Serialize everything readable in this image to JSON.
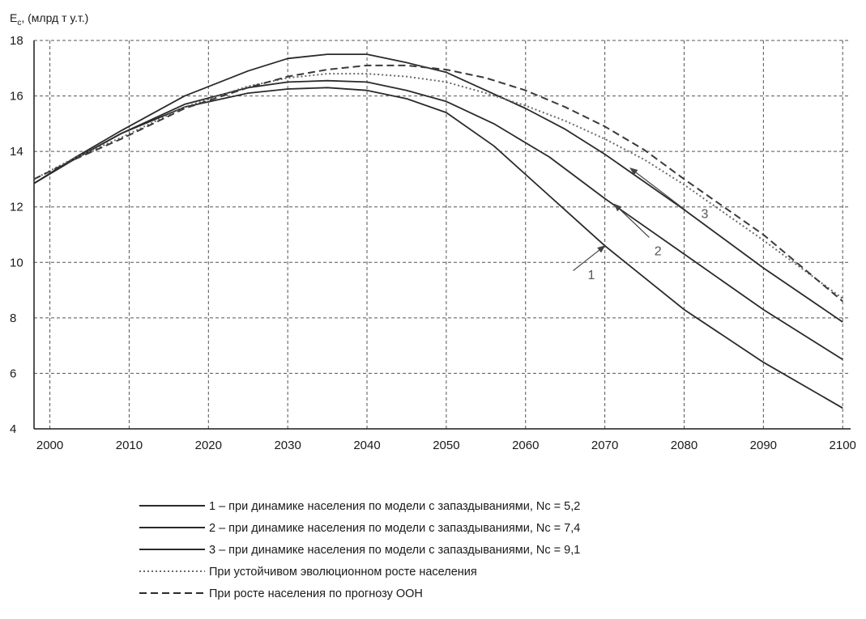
{
  "chart_data": {
    "type": "line",
    "ylabel": "E",
    "ylabel_sub": "c",
    "ylabel_unit": ", (млрд т у.т.)",
    "xlim": [
      1998,
      2101
    ],
    "ylim": [
      4,
      18
    ],
    "x_ticks": [
      2000,
      2010,
      2020,
      2030,
      2040,
      2050,
      2060,
      2070,
      2080,
      2090,
      2100
    ],
    "y_ticks": [
      4,
      6,
      8,
      10,
      12,
      14,
      16,
      18
    ],
    "grid": true,
    "series": [
      {
        "name": "1 – при динамике населения по модели с запаздываниями, Nc = 5,2",
        "style": "solid",
        "color": "#2a2a2a",
        "x": [
          1998,
          2003,
          2009,
          2017,
          2025,
          2030,
          2035,
          2040,
          2045,
          2050,
          2056,
          2063,
          2070,
          2080,
          2090,
          2100
        ],
        "y": [
          12.85,
          13.7,
          14.65,
          15.6,
          16.1,
          16.25,
          16.3,
          16.2,
          15.9,
          15.4,
          14.2,
          12.4,
          10.6,
          8.3,
          6.4,
          4.75
        ]
      },
      {
        "name": "2 – при динамике населения по модели с запаздываниями, Nc = 7,4",
        "style": "solid",
        "color": "#2a2a2a",
        "x": [
          1998,
          2003,
          2009,
          2017,
          2025,
          2030,
          2035,
          2040,
          2045,
          2050,
          2056,
          2063,
          2070,
          2080,
          2090,
          2100
        ],
        "y": [
          12.85,
          13.7,
          14.65,
          15.7,
          16.3,
          16.5,
          16.55,
          16.5,
          16.2,
          15.8,
          15.0,
          13.8,
          12.3,
          10.3,
          8.3,
          6.5
        ]
      },
      {
        "name": "3 – при динамике населения по модели с запаздываниями, Nc = 9,1",
        "style": "solid",
        "color": "#2a2a2a",
        "x": [
          1998,
          2003,
          2009,
          2017,
          2025,
          2030,
          2035,
          2040,
          2045,
          2050,
          2055,
          2060,
          2065,
          2070,
          2080,
          2090,
          2100
        ],
        "y": [
          12.85,
          13.75,
          14.75,
          16.0,
          16.9,
          17.35,
          17.5,
          17.5,
          17.2,
          16.85,
          16.2,
          15.55,
          14.8,
          13.9,
          11.9,
          9.8,
          7.85
        ]
      },
      {
        "name": "При устойчивом эволюционном росте населения",
        "style": "dotted",
        "color": "#6a6a6a",
        "x": [
          1998,
          2003,
          2009,
          2017,
          2025,
          2030,
          2035,
          2040,
          2045,
          2050,
          2055,
          2060,
          2065,
          2070,
          2075,
          2080,
          2090,
          2100
        ],
        "y": [
          13.0,
          13.75,
          14.5,
          15.6,
          16.35,
          16.65,
          16.8,
          16.8,
          16.7,
          16.5,
          16.1,
          15.65,
          15.1,
          14.45,
          13.7,
          12.8,
          10.8,
          8.7
        ]
      },
      {
        "name": "При росте населения по прогнозу ООН",
        "style": "dashed",
        "color": "#3a3a3a",
        "x": [
          1998,
          2003,
          2009,
          2017,
          2025,
          2030,
          2035,
          2040,
          2045,
          2050,
          2055,
          2060,
          2065,
          2070,
          2075,
          2080,
          2090,
          2100
        ],
        "y": [
          13.0,
          13.7,
          14.45,
          15.55,
          16.3,
          16.7,
          16.95,
          17.1,
          17.1,
          16.95,
          16.65,
          16.2,
          15.6,
          14.9,
          14.05,
          13.0,
          11.0,
          8.6
        ]
      }
    ],
    "callouts": [
      {
        "label": "1",
        "text_x": 2068.3,
        "text_y": 9.4,
        "arrow_from": [
          2066.0,
          9.7
        ],
        "arrow_to": [
          2070.0,
          10.6
        ]
      },
      {
        "label": "2",
        "text_x": 2076.7,
        "text_y": 10.25,
        "arrow_from": [
          2075.6,
          10.9
        ],
        "arrow_to": [
          2071.2,
          12.1
        ]
      },
      {
        "label": "3",
        "text_x": 2082.6,
        "text_y": 11.6,
        "arrow_from": [
          2080.1,
          11.9
        ],
        "arrow_to": [
          2073.2,
          13.4
        ]
      }
    ],
    "legend": {
      "position": "bottom",
      "entries": [
        {
          "style": "solid",
          "text": "1 – при динамике населения по модели с запаздываниями, Nc = 5,2"
        },
        {
          "style": "solid",
          "text": "2 –  при динамике населения по модели с запаздываниями, Nc = 7,4"
        },
        {
          "style": "solid",
          "text": "3 –  при динамике населения по модели с запаздываниями, Nc = 9,1"
        },
        {
          "style": "dotted",
          "text": "При устойчивом эволюционном росте населения"
        },
        {
          "style": "dashed",
          "text": "При росте населения по прогнозу ООН"
        }
      ]
    }
  }
}
